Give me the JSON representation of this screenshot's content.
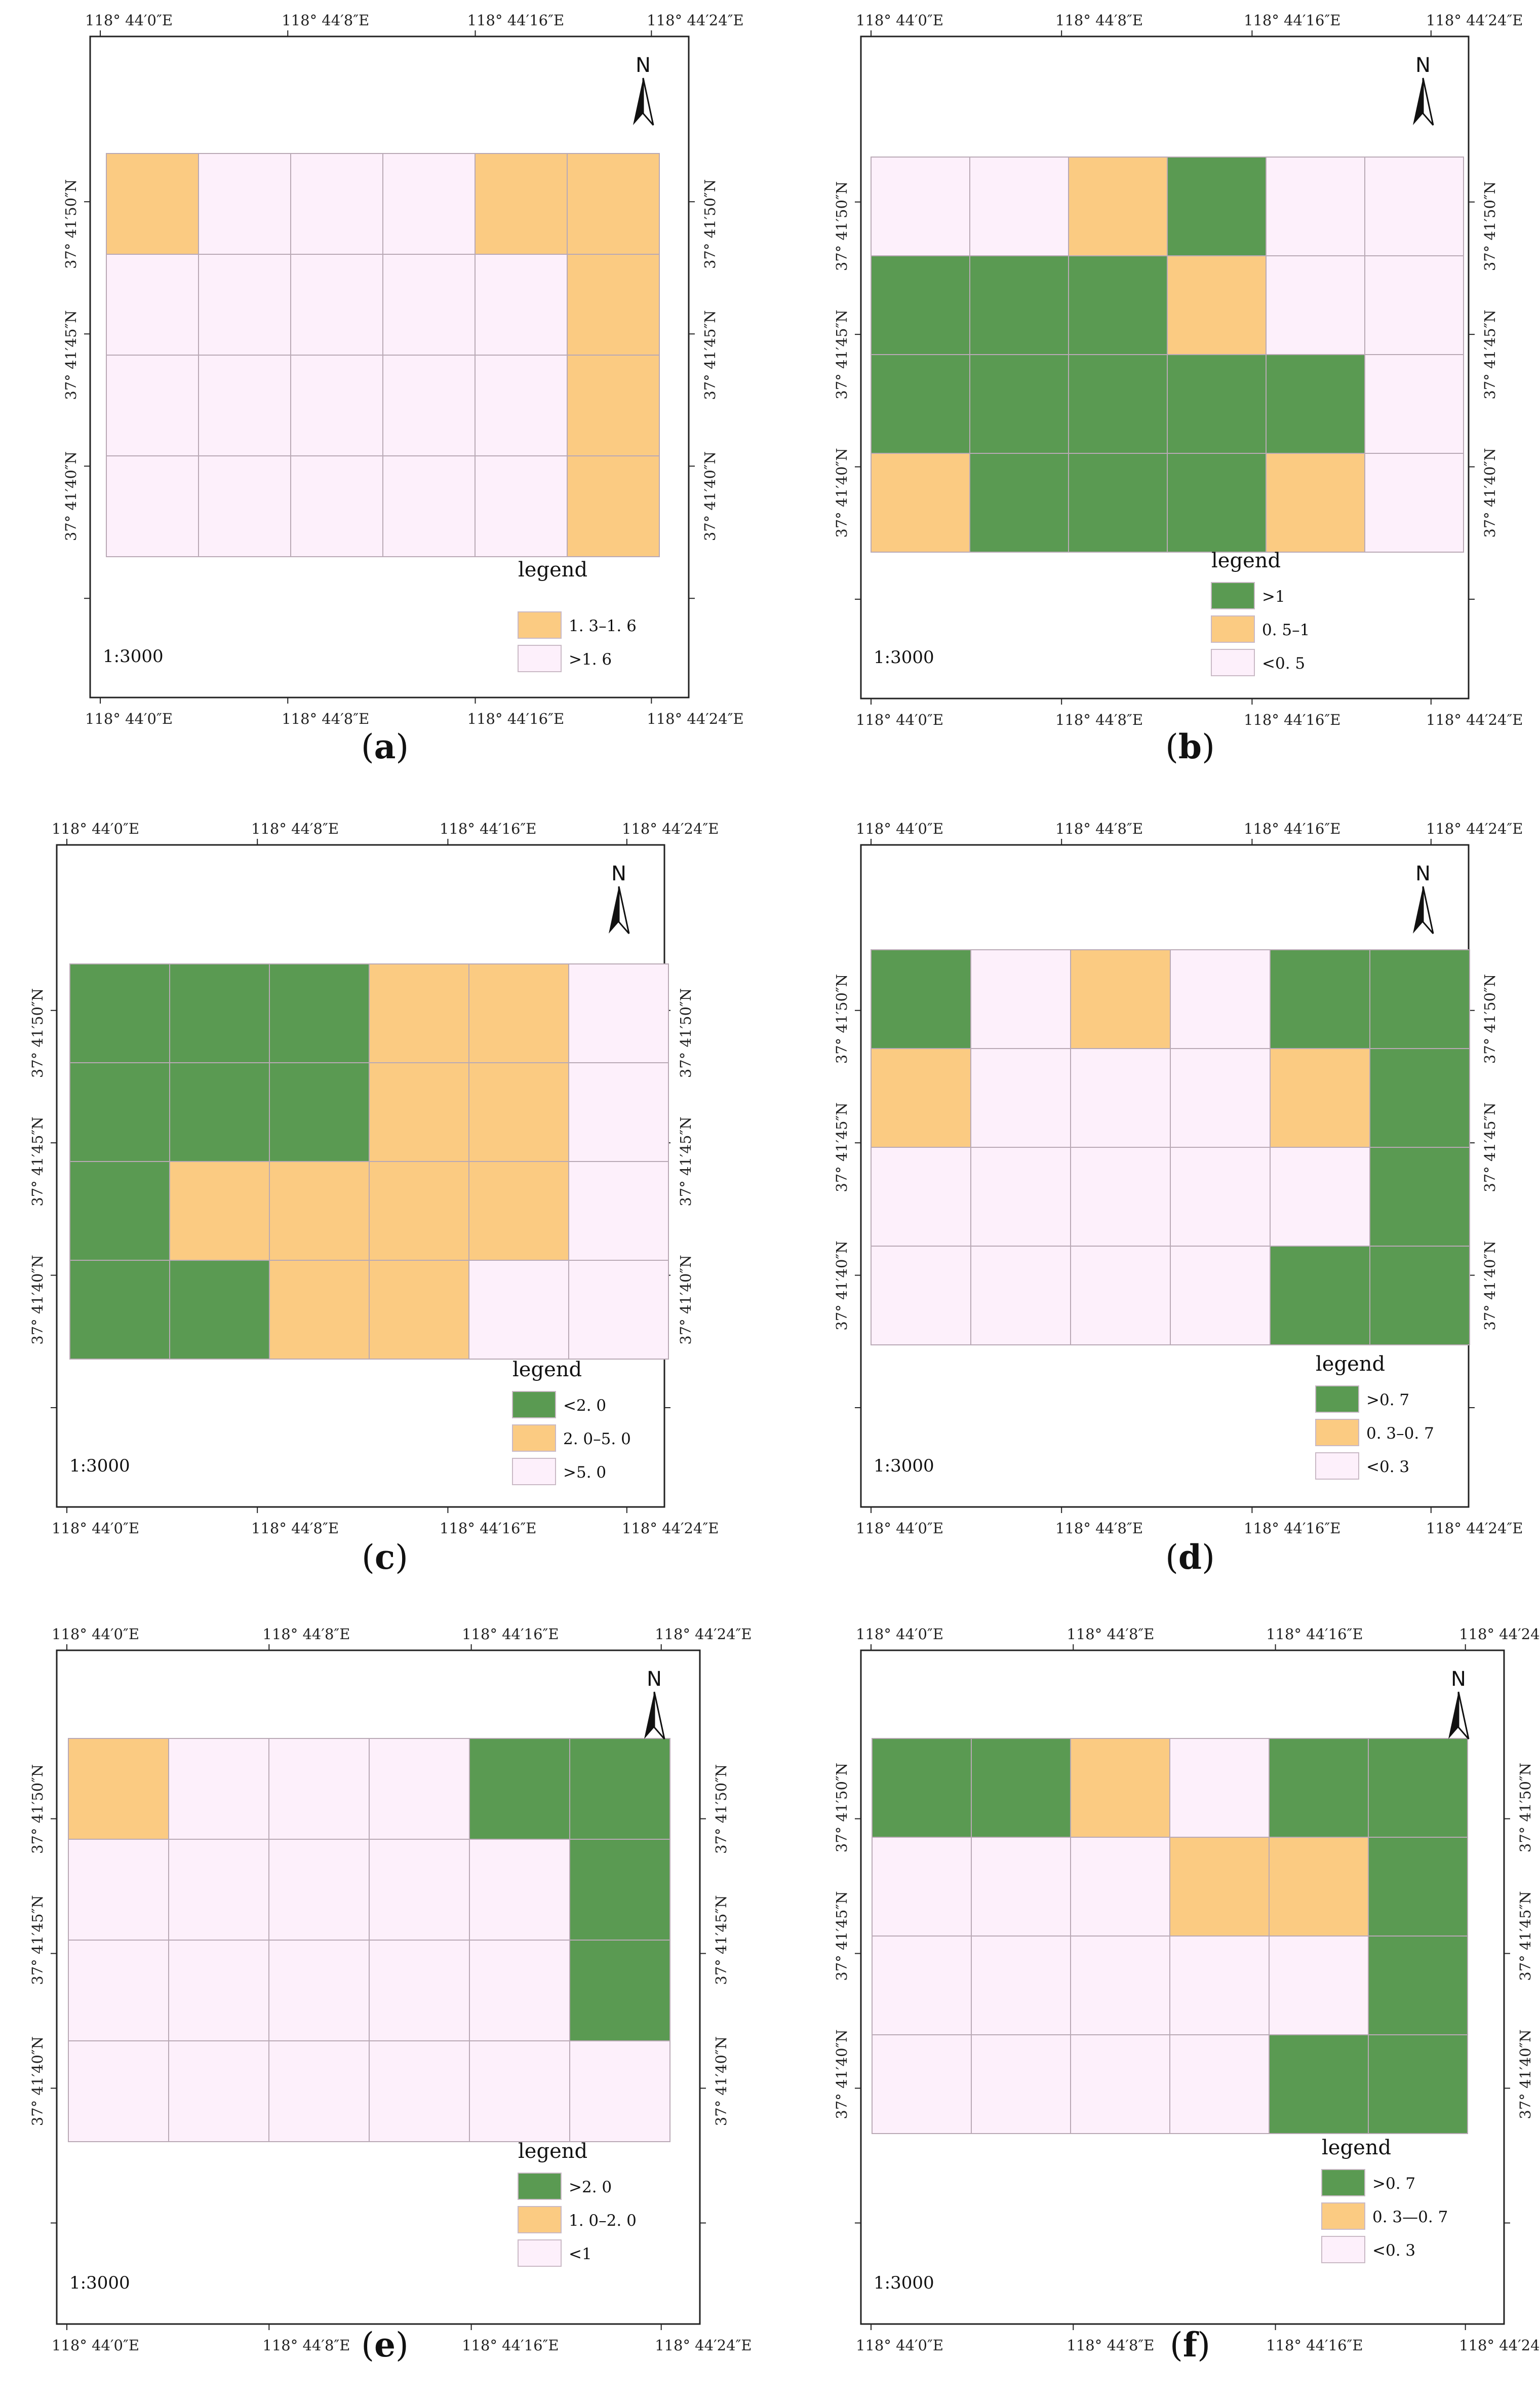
{
  "figure": {
    "colors": {
      "green": "#5a9a52",
      "orange": "#fbcb82",
      "pink": "#fdf0fb",
      "gridline": "#b9a9b5",
      "frame": "#222222"
    },
    "north_label": "N",
    "legend_title": "legend",
    "scale": "1:3000",
    "lon_labels": [
      "118° 44′0″E",
      "118° 44′8″E",
      "118° 44′16″E",
      "118° 44′24″E"
    ],
    "lat_labels": [
      "37° 41′50″N",
      "37° 41′45″N",
      "37° 41′40″N"
    ],
    "panels": [
      {
        "id": "a",
        "caption": "a",
        "grid": [
          [
            "O",
            "P",
            "P",
            "P",
            "O",
            "O"
          ],
          [
            "P",
            "P",
            "P",
            "P",
            "P",
            "O"
          ],
          [
            "P",
            "P",
            "P",
            "P",
            "P",
            "O"
          ],
          [
            "P",
            "P",
            "P",
            "P",
            "P",
            "O"
          ]
        ],
        "legend": [
          {
            "color": "O",
            "label": "1. 3–1. 6"
          },
          {
            "color": "P",
            "label": ">1. 6"
          }
        ]
      },
      {
        "id": "b",
        "caption": "b",
        "grid": [
          [
            "P",
            "P",
            "O",
            "G",
            "P",
            "P"
          ],
          [
            "G",
            "G",
            "G",
            "O",
            "P",
            "P"
          ],
          [
            "G",
            "G",
            "G",
            "G",
            "G",
            "P"
          ],
          [
            "O",
            "G",
            "G",
            "G",
            "O",
            "P"
          ]
        ],
        "legend": [
          {
            "color": "G",
            "label": ">1"
          },
          {
            "color": "O",
            "label": "0. 5–1"
          },
          {
            "color": "P",
            "label": "<0. 5"
          }
        ]
      },
      {
        "id": "c",
        "caption": "c",
        "grid": [
          [
            "G",
            "G",
            "G",
            "O",
            "O",
            "P"
          ],
          [
            "G",
            "G",
            "G",
            "O",
            "O",
            "P"
          ],
          [
            "G",
            "O",
            "O",
            "O",
            "O",
            "P"
          ],
          [
            "G",
            "G",
            "O",
            "O",
            "P",
            "P"
          ]
        ],
        "legend": [
          {
            "color": "G",
            "label": "<2. 0"
          },
          {
            "color": "O",
            "label": "2. 0–5. 0"
          },
          {
            "color": "P",
            "label": ">5. 0"
          }
        ]
      },
      {
        "id": "d",
        "caption": "d",
        "grid": [
          [
            "G",
            "P",
            "O",
            "P",
            "G",
            "G"
          ],
          [
            "O",
            "P",
            "P",
            "P",
            "O",
            "G"
          ],
          [
            "P",
            "P",
            "P",
            "P",
            "P",
            "G"
          ],
          [
            "P",
            "P",
            "P",
            "P",
            "G",
            "G"
          ]
        ],
        "legend": [
          {
            "color": "G",
            "label": ">0. 7"
          },
          {
            "color": "O",
            "label": "0. 3–0. 7"
          },
          {
            "color": "P",
            "label": "<0. 3"
          }
        ]
      },
      {
        "id": "e",
        "caption": "e",
        "grid": [
          [
            "O",
            "P",
            "P",
            "P",
            "G",
            "G"
          ],
          [
            "P",
            "P",
            "P",
            "P",
            "P",
            "G"
          ],
          [
            "P",
            "P",
            "P",
            "P",
            "P",
            "G"
          ],
          [
            "P",
            "P",
            "P",
            "P",
            "P",
            "P"
          ]
        ],
        "legend": [
          {
            "color": "G",
            "label": ">2. 0"
          },
          {
            "color": "O",
            "label": "1. 0–2. 0"
          },
          {
            "color": "P",
            "label": "<1"
          }
        ]
      },
      {
        "id": "f",
        "caption": "f",
        "grid": [
          [
            "G",
            "G",
            "O",
            "P",
            "G",
            "G"
          ],
          [
            "P",
            "P",
            "P",
            "O",
            "O",
            "G"
          ],
          [
            "P",
            "P",
            "P",
            "P",
            "P",
            "G"
          ],
          [
            "P",
            "P",
            "P",
            "P",
            "G",
            "G"
          ]
        ],
        "legend": [
          {
            "color": "G",
            "label": ">0. 7"
          },
          {
            "color": "O",
            "label": "0. 3—0. 7"
          },
          {
            "color": "P",
            "label": "<0. 3"
          }
        ]
      }
    ]
  }
}
